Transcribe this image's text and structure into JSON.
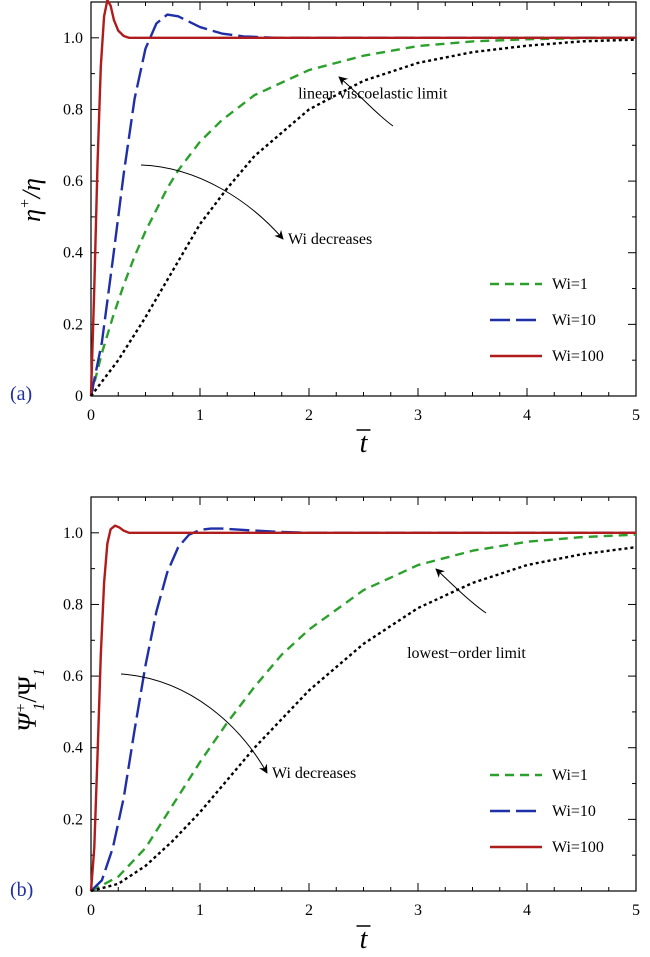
{
  "chart_data": [
    {
      "type": "line",
      "panel_label": "(a)",
      "xlabel": "t̄",
      "ylabel": "η⁺/η",
      "ylabel_parts": {
        "main": "η",
        "sup": "+",
        "den": "η"
      },
      "xlim": [
        0,
        5
      ],
      "ylim": [
        0,
        1.1
      ],
      "x_ticks": [
        "0",
        "1",
        "2",
        "3",
        "4",
        "5"
      ],
      "y_ticks": [
        "0",
        "0.2",
        "0.4",
        "0.6",
        "0.8",
        "1.0"
      ],
      "series": [
        {
          "name": "Wi=1",
          "color": "#2ca02c",
          "dash": "dashed",
          "x": [
            0,
            0.1,
            0.2,
            0.3,
            0.4,
            0.5,
            0.6,
            0.7,
            0.8,
            1.0,
            1.2,
            1.5,
            2.0,
            2.5,
            3.0,
            3.5,
            4.0,
            4.5,
            5.0
          ],
          "y": [
            0,
            0.12,
            0.22,
            0.31,
            0.39,
            0.46,
            0.52,
            0.58,
            0.63,
            0.71,
            0.77,
            0.84,
            0.91,
            0.95,
            0.977,
            0.99,
            0.996,
            0.999,
            1.0
          ]
        },
        {
          "name": "Wi=10",
          "color": "#1f2fa8",
          "dash": "long-dash",
          "x": [
            0,
            0.1,
            0.2,
            0.3,
            0.4,
            0.5,
            0.6,
            0.7,
            0.8,
            0.9,
            1.0,
            1.2,
            1.4,
            1.7,
            2.0,
            3.0,
            4.0,
            5.0
          ],
          "y": [
            0,
            0.15,
            0.38,
            0.62,
            0.83,
            0.97,
            1.04,
            1.065,
            1.06,
            1.045,
            1.03,
            1.012,
            1.004,
            1.0,
            1.0,
            1.0,
            1.0,
            1.0
          ]
        },
        {
          "name": "Wi=100",
          "color": "#b01c1c",
          "dash": "solid",
          "x": [
            0,
            0.03,
            0.06,
            0.09,
            0.12,
            0.15,
            0.18,
            0.21,
            0.25,
            0.3,
            0.35,
            0.45,
            0.6,
            1.0,
            2.0,
            3.0,
            4.0,
            5.0
          ],
          "y": [
            0,
            0.3,
            0.65,
            0.92,
            1.06,
            1.105,
            1.09,
            1.05,
            1.02,
            1.005,
            1.0,
            1.0,
            1.0,
            1.0,
            1.0,
            1.0,
            1.0,
            1.0
          ]
        },
        {
          "name": "linear viscoelastic limit",
          "color": "#000000",
          "dash": "dotted",
          "x": [
            0,
            0.25,
            0.5,
            0.75,
            1.0,
            1.25,
            1.5,
            2.0,
            2.5,
            3.0,
            3.5,
            4.0,
            4.5,
            5.0
          ],
          "y": [
            0,
            0.1,
            0.22,
            0.35,
            0.48,
            0.58,
            0.67,
            0.8,
            0.88,
            0.93,
            0.96,
            0.978,
            0.99,
            0.995
          ]
        }
      ],
      "legend": {
        "position": "bottom-right",
        "entries": [
          "Wi=1",
          "Wi=10",
          "Wi=100"
        ]
      },
      "annotations": [
        {
          "text": "linear viscoelastic limit",
          "x": 1.9,
          "y": 0.83
        },
        {
          "text": "Wi decreases",
          "x": 1.0,
          "y": 0.48
        }
      ]
    },
    {
      "type": "line",
      "panel_label": "(b)",
      "xlabel": "t̄",
      "ylabel": "Ψ₁⁺/Ψ₁",
      "ylabel_parts": {
        "main": "Ψ",
        "sub": "1",
        "sup": "+",
        "den": "Ψ",
        "den_sub": "1"
      },
      "xlim": [
        0,
        5
      ],
      "ylim": [
        0,
        1.1
      ],
      "x_ticks": [
        "0",
        "1",
        "2",
        "3",
        "4",
        "5"
      ],
      "y_ticks": [
        "0",
        "0.2",
        "0.4",
        "0.6",
        "0.8",
        "1.0"
      ],
      "series": [
        {
          "name": "Wi=1",
          "color": "#2ca02c",
          "dash": "dashed",
          "x": [
            0,
            0.25,
            0.5,
            0.75,
            1.0,
            1.25,
            1.5,
            1.75,
            2.0,
            2.5,
            3.0,
            3.5,
            4.0,
            4.5,
            5.0
          ],
          "y": [
            0,
            0.04,
            0.12,
            0.24,
            0.36,
            0.47,
            0.57,
            0.66,
            0.73,
            0.84,
            0.91,
            0.95,
            0.975,
            0.988,
            0.995
          ]
        },
        {
          "name": "Wi=10",
          "color": "#1f2fa8",
          "dash": "long-dash",
          "x": [
            0,
            0.1,
            0.2,
            0.3,
            0.4,
            0.5,
            0.6,
            0.7,
            0.8,
            0.9,
            1.0,
            1.1,
            1.2,
            1.4,
            1.7,
            2.0,
            3.0,
            4.0,
            5.0
          ],
          "y": [
            0,
            0.03,
            0.12,
            0.26,
            0.45,
            0.63,
            0.78,
            0.89,
            0.96,
            0.995,
            1.008,
            1.012,
            1.012,
            1.008,
            1.003,
            1.0,
            1.0,
            1.0,
            1.0
          ]
        },
        {
          "name": "Wi=100",
          "color": "#b01c1c",
          "dash": "solid",
          "x": [
            0,
            0.03,
            0.06,
            0.09,
            0.12,
            0.15,
            0.18,
            0.22,
            0.26,
            0.3,
            0.35,
            0.45,
            0.6,
            1.0,
            2.0,
            3.0,
            4.0,
            5.0
          ],
          "y": [
            0,
            0.12,
            0.38,
            0.66,
            0.86,
            0.97,
            1.01,
            1.02,
            1.015,
            1.006,
            1.0,
            1.0,
            1.0,
            1.0,
            1.0,
            1.0,
            1.0,
            1.0
          ]
        },
        {
          "name": "lowest−order limit",
          "color": "#000000",
          "dash": "dotted",
          "x": [
            0,
            0.25,
            0.5,
            0.75,
            1.0,
            1.25,
            1.5,
            2.0,
            2.5,
            3.0,
            3.5,
            4.0,
            4.5,
            5.0
          ],
          "y": [
            0,
            0.02,
            0.07,
            0.14,
            0.22,
            0.31,
            0.4,
            0.56,
            0.69,
            0.79,
            0.86,
            0.91,
            0.94,
            0.96
          ]
        }
      ],
      "legend": {
        "position": "bottom-right",
        "entries": [
          "Wi=1",
          "Wi=10",
          "Wi=100"
        ]
      },
      "annotations": [
        {
          "text": "lowest−order limit",
          "x": 2.9,
          "y": 0.65
        },
        {
          "text": "Wi decreases",
          "x": 1.6,
          "y": 0.38
        }
      ]
    }
  ],
  "colors": {
    "axis": "#000000",
    "panel_label": "#1f2fa8"
  }
}
